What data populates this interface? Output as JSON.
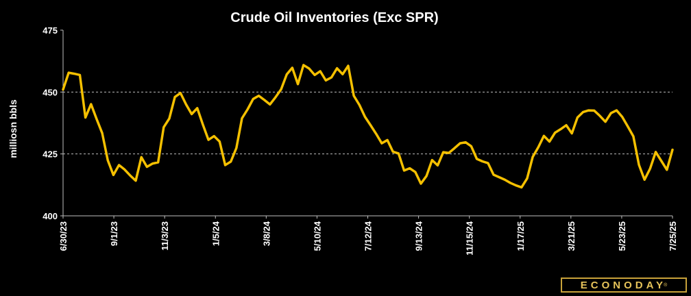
{
  "chart_data": {
    "type": "line",
    "title": "Crude Oil Inventories (Exc SPR)",
    "ylabel": "milliosn bbls",
    "xlabel": "",
    "ylim": [
      400,
      475
    ],
    "yticks": [
      "400",
      "425",
      "450",
      "475"
    ],
    "gridlines": [
      425,
      450
    ],
    "x_tick_labels": [
      "6/30/23",
      "9/1/23",
      "11/3/23",
      "1/5/24",
      "3/8/24",
      "5/10/24",
      "7/12/24",
      "9/13/24",
      "11/15/24",
      "1/17/25",
      "3/21/25",
      "5/23/25",
      "7/25/25"
    ],
    "line_color": "#f5c000",
    "series": [
      {
        "values": [
          451.0,
          457.8,
          457.4,
          456.9,
          439.7,
          445.1,
          439.1,
          433.4,
          422.4,
          416.5,
          420.5,
          418.7,
          416.3,
          414.2,
          423.7,
          419.8,
          421.1,
          421.6,
          435.8,
          439.3,
          448.0,
          449.6,
          445.0,
          441.1,
          443.5,
          436.9,
          430.7,
          432.2,
          430.0,
          420.5,
          421.9,
          427.4,
          439.4,
          443.0,
          447.2,
          448.5,
          446.8,
          445.0,
          447.9,
          451.1,
          457.1,
          459.8,
          453.2,
          460.9,
          459.5,
          456.9,
          458.4,
          454.7,
          455.9,
          459.6,
          457.2,
          460.6,
          448.5,
          444.8,
          440.0,
          436.6,
          433.1,
          429.3,
          430.6,
          425.9,
          425.2,
          418.3,
          419.2,
          417.7,
          413.0,
          416.1,
          422.5,
          420.4,
          425.7,
          425.4,
          427.3,
          429.3,
          429.7,
          428.1,
          423.0,
          422.0,
          421.3,
          416.6,
          415.6,
          414.6,
          413.3,
          412.3,
          411.5,
          415.1,
          423.8,
          427.7,
          432.3,
          430.0,
          433.6,
          435.0,
          436.6,
          433.3,
          439.7,
          441.9,
          442.6,
          442.5,
          440.4,
          438.0,
          441.5,
          442.6,
          440.0,
          436.1,
          432.1,
          420.6,
          414.6,
          419.1,
          425.8,
          422.2,
          418.6,
          426.7
        ]
      }
    ]
  },
  "brand": {
    "name": "ECONODAY",
    "registered_mark": "®",
    "border_color": "#c8a23a",
    "text_color": "#e7c45a"
  }
}
